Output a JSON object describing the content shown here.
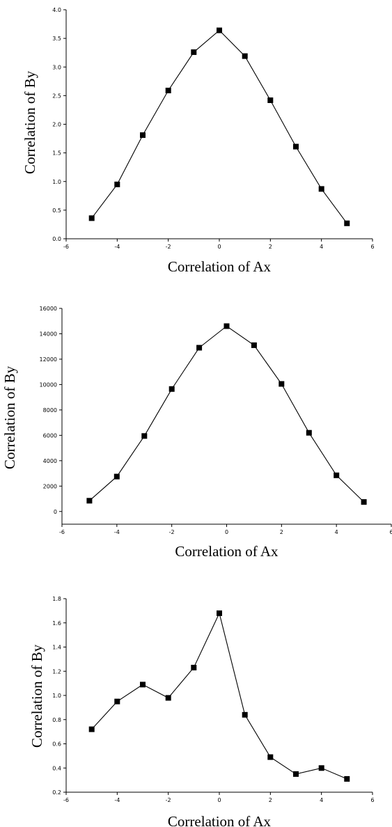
{
  "chart_data": [
    {
      "type": "line",
      "title": "",
      "xlabel": "Correlation of Ax",
      "ylabel": "Correlation of By",
      "xlim": [
        -6,
        6
      ],
      "ylim": [
        0.0,
        4.0
      ],
      "x_ticks": [
        "-6",
        "-4",
        "-2",
        "0",
        "2",
        "4",
        "6"
      ],
      "y_ticks": [
        "0.0",
        "0.5",
        "1.0",
        "1.5",
        "2.0",
        "2.5",
        "3.0",
        "3.5",
        "4.0"
      ],
      "grid": false,
      "marker": "square",
      "x": [
        -5,
        -4,
        -3,
        -2,
        -1,
        0,
        1,
        2,
        3,
        4,
        5
      ],
      "values": [
        0.36,
        0.95,
        1.81,
        2.59,
        3.26,
        3.64,
        3.19,
        2.42,
        1.61,
        0.87,
        0.27
      ]
    },
    {
      "type": "line",
      "title": "",
      "xlabel": "Correlation of Ax",
      "ylabel": "Correlation of By",
      "xlim": [
        -6,
        6
      ],
      "ylim": [
        -1000,
        16000
      ],
      "x_ticks": [
        "-6",
        "-4",
        "-2",
        "0",
        "2",
        "4",
        "6"
      ],
      "y_ticks": [
        "0",
        "2000",
        "4000",
        "6000",
        "8000",
        "10000",
        "12000",
        "14000",
        "16000"
      ],
      "grid": false,
      "marker": "square",
      "x": [
        -5,
        -4,
        -3,
        -2,
        -1,
        0,
        1,
        2,
        3,
        4,
        5
      ],
      "values": [
        850,
        2750,
        5950,
        9650,
        12900,
        14600,
        13100,
        10050,
        6200,
        2850,
        750
      ]
    },
    {
      "type": "line",
      "title": "",
      "xlabel": "Correlation of Ax",
      "ylabel": "Correlation of By",
      "xlim": [
        -6,
        6
      ],
      "ylim": [
        0.2,
        1.8
      ],
      "x_ticks": [
        "-6",
        "-4",
        "-2",
        "0",
        "2",
        "4",
        "6"
      ],
      "y_ticks": [
        "0.2",
        "0.4",
        "0.6",
        "0.8",
        "1.0",
        "1.2",
        "1.4",
        "1.6",
        "1.8"
      ],
      "grid": false,
      "marker": "square",
      "x": [
        -5,
        -4,
        -3,
        -2,
        -1,
        0,
        1,
        2,
        3,
        4,
        5
      ],
      "values": [
        0.72,
        0.95,
        1.09,
        0.98,
        1.23,
        1.68,
        0.84,
        0.49,
        0.35,
        0.4,
        0.31
      ]
    }
  ]
}
